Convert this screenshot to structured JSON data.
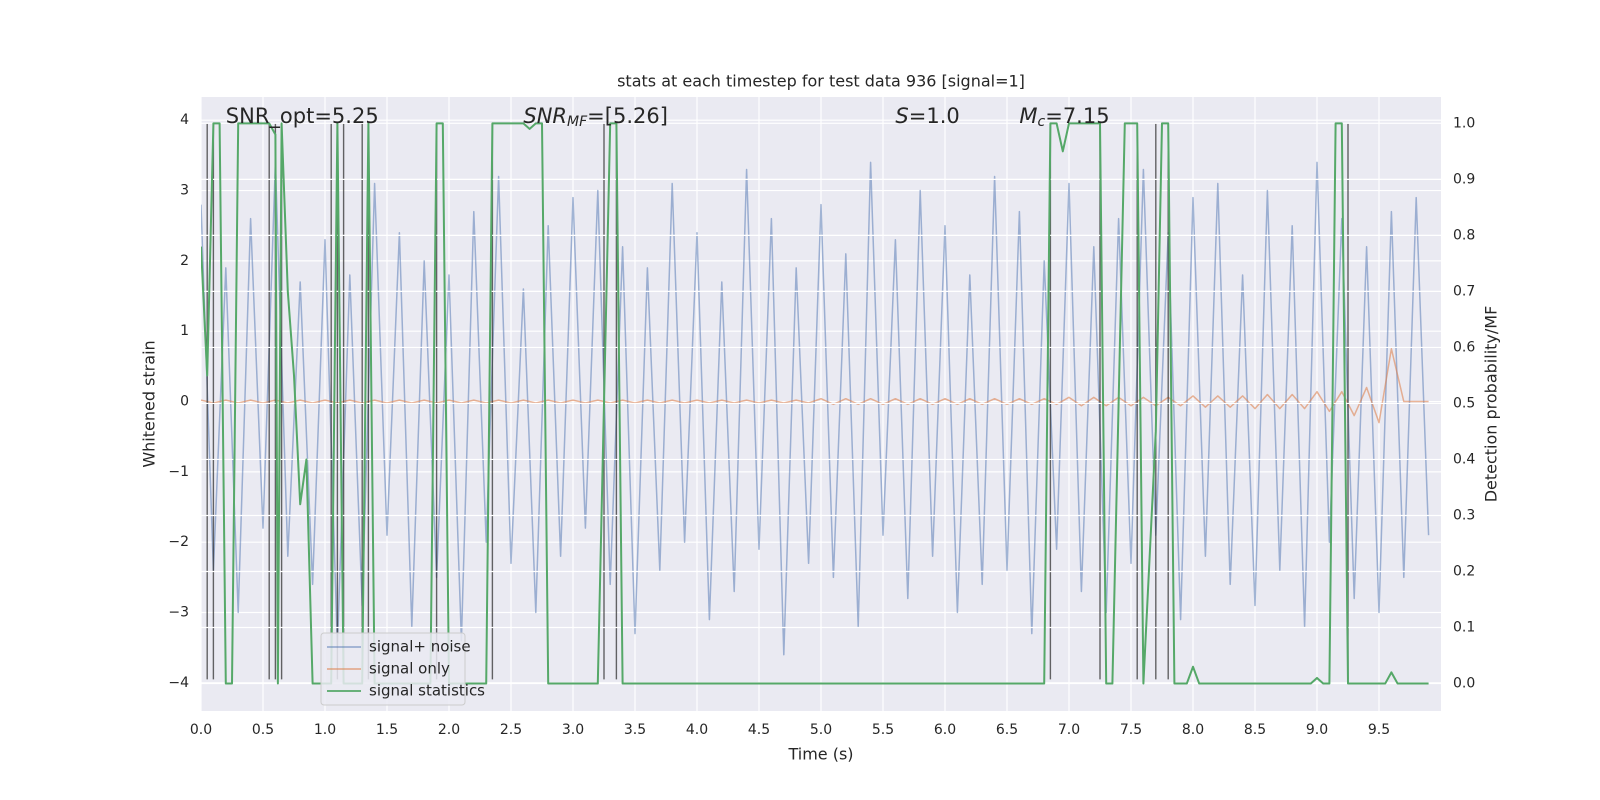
{
  "chart_data": {
    "type": "line",
    "title": "stats at each timestep for test data 936 [signal=1]",
    "xlabel": "Time (s)",
    "ylabel": "Whitened strain",
    "y2label": "Detection probability/MF",
    "annotations": [
      {
        "text": "SNR_opt=5.25",
        "x": 0.2
      },
      {
        "text": "SNR",
        "sub": "MF",
        "rest": "=[5.26]",
        "italic": true,
        "x": 2.6
      },
      {
        "text": "S",
        "rest": "=1.0",
        "italic": true,
        "x": 5.6
      },
      {
        "text": "M",
        "sub": "c",
        "rest": "=7.15",
        "italic": true,
        "x": 6.6
      }
    ],
    "xlim": [
      0,
      10
    ],
    "ylim": [
      -4.4,
      4.33
    ],
    "y2lim": [
      -0.049,
      1.047
    ],
    "xticks": [
      {
        "value": 0,
        "label": "0.0"
      },
      {
        "value": 0.5,
        "label": "0.5"
      },
      {
        "value": 1,
        "label": "1.0"
      },
      {
        "value": 1.5,
        "label": "1.5"
      },
      {
        "value": 2,
        "label": "2.0"
      },
      {
        "value": 2.5,
        "label": "2.5"
      },
      {
        "value": 3,
        "label": "3.0"
      },
      {
        "value": 3.5,
        "label": "3.5"
      },
      {
        "value": 4,
        "label": "4.0"
      },
      {
        "value": 4.5,
        "label": "4.5"
      },
      {
        "value": 5,
        "label": "5.0"
      },
      {
        "value": 5.5,
        "label": "5.5"
      },
      {
        "value": 6,
        "label": "6.0"
      },
      {
        "value": 6.5,
        "label": "6.5"
      },
      {
        "value": 7,
        "label": "7.0"
      },
      {
        "value": 7.5,
        "label": "7.5"
      },
      {
        "value": 8,
        "label": "8.0"
      },
      {
        "value": 8.5,
        "label": "8.5"
      },
      {
        "value": 9,
        "label": "9.0"
      },
      {
        "value": 9.5,
        "label": "9.5"
      }
    ],
    "yticks": [
      {
        "value": -4,
        "label": "−4"
      },
      {
        "value": -3,
        "label": "−3"
      },
      {
        "value": -2,
        "label": "−2"
      },
      {
        "value": -1,
        "label": "−1"
      },
      0,
      1,
      2,
      3,
      4
    ],
    "y2ticks": [
      {
        "value": 0,
        "label": "0.0"
      },
      {
        "value": 0.1,
        "label": "0.1"
      },
      {
        "value": 0.2,
        "label": "0.2"
      },
      {
        "value": 0.3,
        "label": "0.3"
      },
      {
        "value": 0.4,
        "label": "0.4"
      },
      {
        "value": 0.5,
        "label": "0.5"
      },
      {
        "value": 0.6,
        "label": "0.6"
      },
      {
        "value": 0.7,
        "label": "0.7"
      },
      {
        "value": 0.8,
        "label": "0.8"
      },
      {
        "value": 0.9,
        "label": "0.9"
      },
      {
        "value": 1,
        "label": "1.0"
      }
    ],
    "grid": true,
    "legend": "lower left",
    "x": [
      0.0,
      0.1,
      0.2,
      0.3,
      0.4,
      0.5,
      0.6,
      0.7,
      0.8,
      0.9,
      1.0,
      1.1,
      1.2,
      1.3,
      1.4,
      1.5,
      1.6,
      1.7,
      1.8,
      1.9,
      2.0,
      2.1,
      2.2,
      2.3,
      2.4,
      2.5,
      2.6,
      2.7,
      2.8,
      2.9,
      3.0,
      3.1,
      3.2,
      3.3,
      3.4,
      3.5,
      3.6,
      3.7,
      3.8,
      3.9,
      4.0,
      4.1,
      4.2,
      4.3,
      4.4,
      4.5,
      4.6,
      4.7,
      4.8,
      4.9,
      5.0,
      5.1,
      5.2,
      5.3,
      5.4,
      5.5,
      5.6,
      5.7,
      5.8,
      5.9,
      6.0,
      6.1,
      6.2,
      6.3,
      6.4,
      6.5,
      6.6,
      6.7,
      6.8,
      6.9,
      7.0,
      7.1,
      7.2,
      7.3,
      7.4,
      7.5,
      7.6,
      7.7,
      7.8,
      7.9,
      8.0,
      8.1,
      8.2,
      8.3,
      8.4,
      8.5,
      8.6,
      8.7,
      8.8,
      8.9,
      9.0,
      9.1,
      9.2,
      9.3,
      9.4,
      9.5,
      9.6,
      9.7,
      9.8,
      9.9
    ],
    "series": [
      {
        "name": "signal+ noise",
        "color": "#4c72b0",
        "alpha": 0.5,
        "values": [
          2.8,
          -2.4,
          1.9,
          -3.0,
          2.6,
          -1.8,
          3.4,
          -2.2,
          1.7,
          -2.6,
          2.3,
          -3.5,
          1.8,
          -2.9,
          3.1,
          -1.9,
          2.4,
          -3.2,
          2.0,
          -2.5,
          1.8,
          -3.4,
          2.7,
          -2.0,
          3.2,
          -2.3,
          1.6,
          -3.0,
          2.5,
          -2.2,
          2.9,
          -1.8,
          3.0,
          -2.6,
          2.2,
          -3.3,
          1.9,
          -2.4,
          3.1,
          -2.0,
          2.4,
          -3.1,
          1.7,
          -2.7,
          3.3,
          -2.1,
          2.6,
          -3.6,
          1.9,
          -2.3,
          2.8,
          -2.5,
          2.1,
          -3.2,
          3.4,
          -1.9,
          2.3,
          -2.8,
          3.0,
          -2.2,
          2.5,
          -3.0,
          1.8,
          -2.6,
          3.2,
          -2.4,
          2.7,
          -3.3,
          2.0,
          -2.1,
          3.1,
          -2.7,
          2.2,
          -3.0,
          2.6,
          -2.3,
          3.3,
          -1.9,
          2.4,
          -3.1,
          2.9,
          -2.2,
          3.1,
          -2.6,
          1.8,
          -2.9,
          3.0,
          -2.4,
          2.5,
          -3.2,
          3.4,
          -2.0,
          2.6,
          -2.8,
          2.2,
          -3.0,
          2.7,
          -2.5,
          2.9,
          -1.9
        ]
      },
      {
        "name": "signal only",
        "color": "#dd8452",
        "alpha": 0.6,
        "values": [
          0.02,
          -0.02,
          0.02,
          -0.02,
          0.02,
          -0.02,
          0.02,
          -0.02,
          0.02,
          -0.02,
          0.02,
          -0.02,
          0.02,
          -0.02,
          0.02,
          -0.02,
          0.02,
          -0.02,
          0.02,
          -0.02,
          0.02,
          -0.02,
          0.02,
          -0.02,
          0.02,
          -0.02,
          0.02,
          -0.02,
          0.02,
          -0.02,
          0.02,
          -0.02,
          0.02,
          -0.02,
          0.02,
          -0.02,
          0.02,
          -0.02,
          0.02,
          -0.02,
          0.02,
          -0.02,
          0.02,
          -0.02,
          0.02,
          -0.02,
          0.02,
          -0.02,
          0.02,
          -0.02,
          0.04,
          -0.04,
          0.04,
          -0.04,
          0.04,
          -0.04,
          0.04,
          -0.04,
          0.04,
          -0.04,
          0.04,
          -0.04,
          0.04,
          -0.04,
          0.04,
          -0.04,
          0.04,
          -0.04,
          0.04,
          -0.04,
          0.06,
          -0.06,
          0.06,
          -0.06,
          0.06,
          -0.06,
          0.06,
          -0.06,
          0.06,
          -0.06,
          0.08,
          -0.08,
          0.08,
          -0.08,
          0.08,
          -0.1,
          0.1,
          -0.1,
          0.1,
          -0.1,
          0.14,
          -0.14,
          0.14,
          -0.2,
          0.2,
          -0.3,
          0.75,
          0,
          0,
          0
        ]
      },
      {
        "name": "signal statistics",
        "color": "#55a868",
        "axis": "y2",
        "x": [
          0.0,
          0.05,
          0.1,
          0.15,
          0.2,
          0.25,
          0.3,
          0.55,
          0.6,
          0.62,
          0.65,
          0.7,
          0.75,
          0.8,
          0.85,
          0.9,
          1.05,
          1.1,
          1.15,
          1.3,
          1.35,
          1.4,
          1.85,
          1.9,
          1.95,
          2.0,
          2.3,
          2.35,
          2.6,
          2.65,
          2.7,
          2.75,
          2.8,
          3.2,
          3.3,
          3.35,
          3.4,
          6.4,
          6.8,
          6.85,
          6.9,
          6.95,
          7.0,
          7.25,
          7.3,
          7.35,
          7.45,
          7.55,
          7.6,
          7.7,
          7.75,
          7.8,
          7.85,
          7.95,
          8.0,
          8.05,
          8.95,
          9.0,
          9.05,
          9.1,
          9.15,
          9.2,
          9.25,
          9.55,
          9.6,
          9.65,
          9.9
        ],
        "values": [
          0.78,
          0.55,
          1.0,
          1.0,
          0.0,
          0.0,
          1.0,
          1.0,
          0.98,
          0.0,
          1.0,
          0.7,
          0.55,
          0.32,
          0.4,
          0.0,
          0.0,
          1.0,
          0.0,
          0.0,
          1.0,
          0.0,
          0.0,
          1.0,
          1.0,
          0.0,
          0.0,
          1.0,
          1.0,
          0.99,
          1.0,
          1.0,
          0.0,
          0.0,
          1.0,
          1.0,
          0.0,
          0.0,
          0.0,
          1.0,
          1.0,
          0.95,
          1.0,
          1.0,
          0.0,
          0.0,
          1.0,
          1.0,
          0.0,
          0.45,
          1.0,
          1.0,
          0.0,
          0.0,
          0.03,
          0.0,
          0.0,
          0.01,
          0.0,
          0.0,
          1.0,
          1.0,
          0.0,
          0.0,
          0.02,
          0.0,
          0.0
        ]
      }
    ],
    "vlines": {
      "x": [
        0.05,
        0.1,
        0.55,
        0.6,
        0.65,
        1.05,
        1.1,
        1.15,
        1.3,
        1.35,
        1.9,
        2.35,
        3.25,
        3.35,
        6.85,
        7.25,
        7.55,
        7.7,
        7.8,
        9.25
      ],
      "ymin": -3.95,
      "ymax": 3.95,
      "color": "#333333"
    }
  }
}
